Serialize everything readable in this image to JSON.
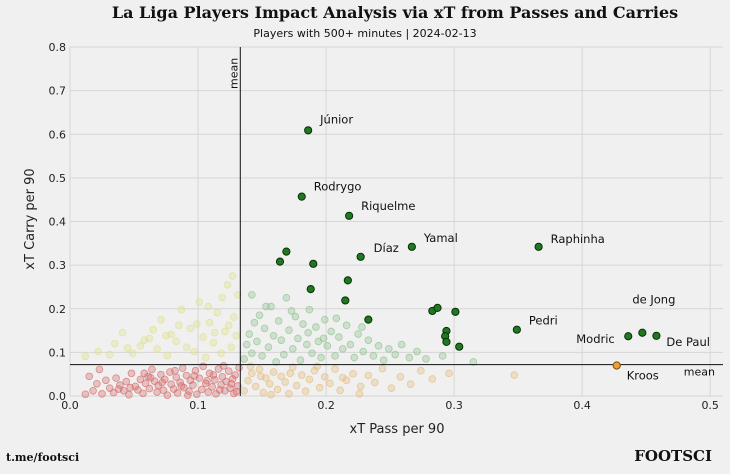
{
  "chart_data": {
    "type": "scatter",
    "title": "La Liga Players Impact Analysis via xT from Passes and Carries",
    "subtitle": "Players with 500+ minutes | 2024-02-13",
    "xlabel": "xT Pass per 90",
    "ylabel": "xT Carry per 90",
    "xlim": [
      0.0,
      0.51
    ],
    "ylim": [
      0.0,
      0.8
    ],
    "x_ticks": [
      "0.0",
      "0.1",
      "0.2",
      "0.3",
      "0.4",
      "0.5"
    ],
    "y_ticks": [
      "0.0",
      "0.1",
      "0.2",
      "0.3",
      "0.4",
      "0.5",
      "0.6",
      "0.7",
      "0.8"
    ],
    "grid": true,
    "mean_x": 0.133,
    "mean_y": 0.072,
    "mean_label": "mean",
    "colors": {
      "highlight": "#1f7a1f",
      "highlight_edge": "#0a2e0a",
      "kroos": "#f0a030",
      "kroos_edge": "#7a4a10",
      "bg_low": "#d46a6a",
      "bg_lowpass": "#dfe08a",
      "bg_lowcarry": "#e6bb7a",
      "bg_high": "#8cc08c"
    },
    "labeled_players": [
      {
        "name": "Júnior",
        "x": 0.186,
        "y": 0.609,
        "label": true
      },
      {
        "name": "Rodrygo",
        "x": 0.181,
        "y": 0.457,
        "label": true
      },
      {
        "name": "Riquelme",
        "x": 0.218,
        "y": 0.413,
        "label": true
      },
      {
        "name": "Yamal",
        "x": 0.267,
        "y": 0.342,
        "label": true
      },
      {
        "name": "Díaz",
        "x": 0.227,
        "y": 0.319,
        "label": true
      },
      {
        "name": "Raphinha",
        "x": 0.366,
        "y": 0.342,
        "label": true
      },
      {
        "name": "Pedri",
        "x": 0.349,
        "y": 0.152,
        "label": true
      },
      {
        "name": "de Jong",
        "x": 0.447,
        "y": 0.145,
        "label": true
      },
      {
        "name": "Modric",
        "x": 0.436,
        "y": 0.137,
        "label": true
      },
      {
        "name": "De Paul",
        "x": 0.458,
        "y": 0.138,
        "label": true
      },
      {
        "name": "Kroos",
        "x": 0.427,
        "y": 0.07,
        "label": true,
        "color": "kroos"
      },
      {
        "name": "",
        "x": 0.169,
        "y": 0.331
      },
      {
        "name": "",
        "x": 0.164,
        "y": 0.308
      },
      {
        "name": "",
        "x": 0.19,
        "y": 0.303
      },
      {
        "name": "",
        "x": 0.217,
        "y": 0.265
      },
      {
        "name": "",
        "x": 0.188,
        "y": 0.245
      },
      {
        "name": "",
        "x": 0.215,
        "y": 0.219
      },
      {
        "name": "",
        "x": 0.233,
        "y": 0.175
      },
      {
        "name": "",
        "x": 0.283,
        "y": 0.195
      },
      {
        "name": "",
        "x": 0.287,
        "y": 0.202
      },
      {
        "name": "",
        "x": 0.301,
        "y": 0.193
      },
      {
        "name": "",
        "x": 0.294,
        "y": 0.149
      },
      {
        "name": "",
        "x": 0.293,
        "y": 0.137
      },
      {
        "name": "",
        "x": 0.294,
        "y": 0.124
      },
      {
        "name": "",
        "x": 0.304,
        "y": 0.113
      }
    ],
    "background_players": {
      "low": [
        [
          0.012,
          0.004
        ],
        [
          0.018,
          0.012
        ],
        [
          0.021,
          0.028
        ],
        [
          0.025,
          0.005
        ],
        [
          0.028,
          0.036
        ],
        [
          0.031,
          0.018
        ],
        [
          0.034,
          0.008
        ],
        [
          0.036,
          0.041
        ],
        [
          0.039,
          0.025
        ],
        [
          0.042,
          0.012
        ],
        [
          0.044,
          0.033
        ],
        [
          0.046,
          0.003
        ],
        [
          0.048,
          0.052
        ],
        [
          0.051,
          0.022
        ],
        [
          0.053,
          0.014
        ],
        [
          0.055,
          0.038
        ],
        [
          0.057,
          0.006
        ],
        [
          0.059,
          0.029
        ],
        [
          0.061,
          0.045
        ],
        [
          0.062,
          0.017
        ],
        [
          0.064,
          0.061
        ],
        [
          0.066,
          0.034
        ],
        [
          0.068,
          0.009
        ],
        [
          0.069,
          0.024
        ],
        [
          0.071,
          0.049
        ],
        [
          0.073,
          0.013
        ],
        [
          0.074,
          0.038
        ],
        [
          0.076,
          0.002
        ],
        [
          0.078,
          0.055
        ],
        [
          0.079,
          0.027
        ],
        [
          0.081,
          0.016
        ],
        [
          0.083,
          0.043
        ],
        [
          0.084,
          0.007
        ],
        [
          0.086,
          0.031
        ],
        [
          0.088,
          0.064
        ],
        [
          0.089,
          0.019
        ],
        [
          0.091,
          0.047
        ],
        [
          0.093,
          0.011
        ],
        [
          0.094,
          0.036
        ],
        [
          0.096,
          0.025
        ],
        [
          0.098,
          0.058
        ],
        [
          0.099,
          0.004
        ],
        [
          0.101,
          0.041
        ],
        [
          0.103,
          0.015
        ],
        [
          0.104,
          0.068
        ],
        [
          0.106,
          0.029
        ],
        [
          0.108,
          0.009
        ],
        [
          0.109,
          0.052
        ],
        [
          0.111,
          0.021
        ],
        [
          0.113,
          0.037
        ],
        [
          0.114,
          0.005
        ],
        [
          0.116,
          0.062
        ],
        [
          0.118,
          0.026
        ],
        [
          0.119,
          0.044
        ],
        [
          0.121,
          0.012
        ],
        [
          0.122,
          0.033
        ],
        [
          0.124,
          0.057
        ],
        [
          0.125,
          0.018
        ],
        [
          0.127,
          0.039
        ],
        [
          0.128,
          0.006
        ],
        [
          0.129,
          0.048
        ],
        [
          0.131,
          0.023
        ],
        [
          0.132,
          0.065
        ],
        [
          0.015,
          0.045
        ],
        [
          0.023,
          0.061
        ],
        [
          0.047,
          0.019
        ],
        [
          0.058,
          0.052
        ],
        [
          0.072,
          0.031
        ],
        [
          0.087,
          0.023
        ],
        [
          0.097,
          0.046
        ],
        [
          0.107,
          0.035
        ],
        [
          0.117,
          0.014
        ],
        [
          0.126,
          0.028
        ],
        [
          0.038,
          0.016
        ],
        [
          0.063,
          0.042
        ],
        [
          0.082,
          0.058
        ],
        [
          0.092,
          0.002
        ],
        [
          0.112,
          0.048
        ],
        [
          0.12,
          0.069
        ],
        [
          0.13,
          0.01
        ]
      ],
      "lowpass": [
        [
          0.012,
          0.091
        ],
        [
          0.022,
          0.102
        ],
        [
          0.035,
          0.12
        ],
        [
          0.041,
          0.145
        ],
        [
          0.049,
          0.098
        ],
        [
          0.055,
          0.115
        ],
        [
          0.062,
          0.132
        ],
        [
          0.068,
          0.108
        ],
        [
          0.071,
          0.175
        ],
        [
          0.076,
          0.093
        ],
        [
          0.079,
          0.141
        ],
        [
          0.083,
          0.125
        ],
        [
          0.087,
          0.198
        ],
        [
          0.091,
          0.112
        ],
        [
          0.094,
          0.155
        ],
        [
          0.097,
          0.102
        ],
        [
          0.101,
          0.215
        ],
        [
          0.104,
          0.135
        ],
        [
          0.106,
          0.088
        ],
        [
          0.109,
          0.168
        ],
        [
          0.112,
          0.122
        ],
        [
          0.115,
          0.191
        ],
        [
          0.118,
          0.098
        ],
        [
          0.121,
          0.148
        ],
        [
          0.123,
          0.255
        ],
        [
          0.126,
          0.112
        ],
        [
          0.128,
          0.181
        ],
        [
          0.13,
          0.138
        ],
        [
          0.131,
          0.232
        ],
        [
          0.127,
          0.275
        ],
        [
          0.119,
          0.226
        ],
        [
          0.108,
          0.205
        ],
        [
          0.099,
          0.165
        ],
        [
          0.085,
          0.162
        ],
        [
          0.075,
          0.138
        ],
        [
          0.065,
          0.152
        ],
        [
          0.058,
          0.128
        ],
        [
          0.045,
          0.11
        ],
        [
          0.031,
          0.095
        ],
        [
          0.113,
          0.145
        ],
        [
          0.124,
          0.162
        ]
      ],
      "lowcarry": [
        [
          0.136,
          0.012
        ],
        [
          0.139,
          0.035
        ],
        [
          0.142,
          0.052
        ],
        [
          0.145,
          0.022
        ],
        [
          0.148,
          0.061
        ],
        [
          0.151,
          0.008
        ],
        [
          0.153,
          0.041
        ],
        [
          0.156,
          0.028
        ],
        [
          0.159,
          0.055
        ],
        [
          0.162,
          0.015
        ],
        [
          0.165,
          0.045
        ],
        [
          0.168,
          0.032
        ],
        [
          0.171,
          0.005
        ],
        [
          0.174,
          0.066
        ],
        [
          0.177,
          0.024
        ],
        [
          0.181,
          0.048
        ],
        [
          0.184,
          0.011
        ],
        [
          0.187,
          0.038
        ],
        [
          0.191,
          0.058
        ],
        [
          0.195,
          0.019
        ],
        [
          0.199,
          0.044
        ],
        [
          0.203,
          0.029
        ],
        [
          0.207,
          0.062
        ],
        [
          0.211,
          0.013
        ],
        [
          0.216,
          0.036
        ],
        [
          0.221,
          0.051
        ],
        [
          0.227,
          0.022
        ],
        [
          0.233,
          0.047
        ],
        [
          0.238,
          0.031
        ],
        [
          0.244,
          0.063
        ],
        [
          0.251,
          0.018
        ],
        [
          0.258,
          0.044
        ],
        [
          0.266,
          0.027
        ],
        [
          0.274,
          0.058
        ],
        [
          0.283,
          0.039
        ],
        [
          0.296,
          0.052
        ],
        [
          0.347,
          0.048
        ],
        [
          0.141,
          0.068
        ],
        [
          0.157,
          0.003
        ],
        [
          0.193,
          0.068
        ],
        [
          0.226,
          0.005
        ],
        [
          0.213,
          0.042
        ],
        [
          0.172,
          0.052
        ],
        [
          0.149,
          0.045
        ]
      ],
      "high": [
        [
          0.136,
          0.085
        ],
        [
          0.138,
          0.118
        ],
        [
          0.14,
          0.142
        ],
        [
          0.142,
          0.098
        ],
        [
          0.144,
          0.168
        ],
        [
          0.146,
          0.125
        ],
        [
          0.148,
          0.185
        ],
        [
          0.15,
          0.092
        ],
        [
          0.152,
          0.155
        ],
        [
          0.155,
          0.112
        ],
        [
          0.157,
          0.205
        ],
        [
          0.159,
          0.138
        ],
        [
          0.161,
          0.078
        ],
        [
          0.163,
          0.172
        ],
        [
          0.165,
          0.128
        ],
        [
          0.167,
          0.095
        ],
        [
          0.169,
          0.225
        ],
        [
          0.171,
          0.151
        ],
        [
          0.174,
          0.108
        ],
        [
          0.176,
          0.182
        ],
        [
          0.178,
          0.132
        ],
        [
          0.18,
          0.082
        ],
        [
          0.182,
          0.165
        ],
        [
          0.185,
          0.118
        ],
        [
          0.187,
          0.198
        ],
        [
          0.189,
          0.098
        ],
        [
          0.192,
          0.158
        ],
        [
          0.194,
          0.125
        ],
        [
          0.196,
          0.088
        ],
        [
          0.199,
          0.175
        ],
        [
          0.201,
          0.115
        ],
        [
          0.204,
          0.148
        ],
        [
          0.207,
          0.092
        ],
        [
          0.21,
          0.135
        ],
        [
          0.213,
          0.108
        ],
        [
          0.216,
          0.162
        ],
        [
          0.219,
          0.118
        ],
        [
          0.222,
          0.088
        ],
        [
          0.225,
          0.142
        ],
        [
          0.229,
          0.102
        ],
        [
          0.233,
          0.128
        ],
        [
          0.237,
          0.092
        ],
        [
          0.241,
          0.115
        ],
        [
          0.245,
          0.082
        ],
        [
          0.249,
          0.108
        ],
        [
          0.254,
          0.095
        ],
        [
          0.259,
          0.118
        ],
        [
          0.265,
          0.088
        ],
        [
          0.271,
          0.102
        ],
        [
          0.278,
          0.085
        ],
        [
          0.291,
          0.092
        ],
        [
          0.315,
          0.078
        ],
        [
          0.142,
          0.232
        ],
        [
          0.153,
          0.205
        ],
        [
          0.173,
          0.195
        ],
        [
          0.186,
          0.145
        ],
        [
          0.198,
          0.132
        ],
        [
          0.208,
          0.178
        ],
        [
          0.228,
          0.158
        ]
      ]
    }
  },
  "footer": {
    "left": "t.me/footsci",
    "right": "FOOTSCI"
  }
}
